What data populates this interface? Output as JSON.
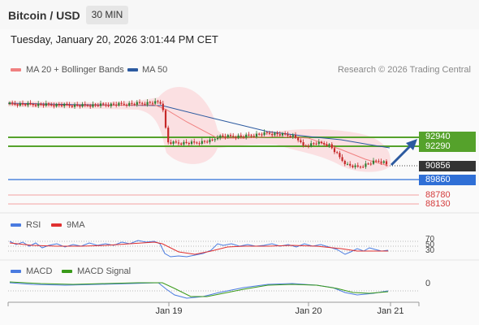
{
  "header": {
    "title": "Bitcoin / USD",
    "interval": "30 MIN",
    "timestamp": "Tuesday, January 20, 2026 3:01:44 PM CET"
  },
  "legend": {
    "items": [
      {
        "label": "MA 20 + Bollinger Bands",
        "color": "#f08080"
      },
      {
        "label": "MA 50",
        "color": "#2c5aa0"
      }
    ],
    "copyright": "Research © 2026 Trading Central"
  },
  "price_levels": [
    {
      "value": "92940",
      "style": "green"
    },
    {
      "value": "92290",
      "style": "green"
    },
    {
      "value": "90856",
      "style": "dark"
    },
    {
      "value": "89860",
      "style": "blue"
    },
    {
      "value": "88780",
      "style": "red"
    },
    {
      "value": "88130",
      "style": "red"
    }
  ],
  "rsi_panel": {
    "legend": [
      {
        "label": "RSI",
        "color": "#4a7be0"
      },
      {
        "label": "9MA",
        "color": "#e03030"
      }
    ],
    "levels": [
      "70",
      "50",
      "30"
    ]
  },
  "macd_panel": {
    "legend": [
      {
        "label": "MACD",
        "color": "#4a7be0"
      },
      {
        "label": "MACD Signal",
        "color": "#3a9a1a"
      }
    ],
    "zero_label": "0"
  },
  "x_axis": {
    "labels": [
      "Jan 19",
      "Jan 20",
      "Jan 21"
    ]
  },
  "colors": {
    "up_candle": "#2e7d32",
    "down_candle": "#c62828",
    "band_fill": "#fadadd",
    "support_line": "#2f6fd6",
    "resistance_line": "#55a22b",
    "forecast_arrow": "#2c5aa0"
  }
}
